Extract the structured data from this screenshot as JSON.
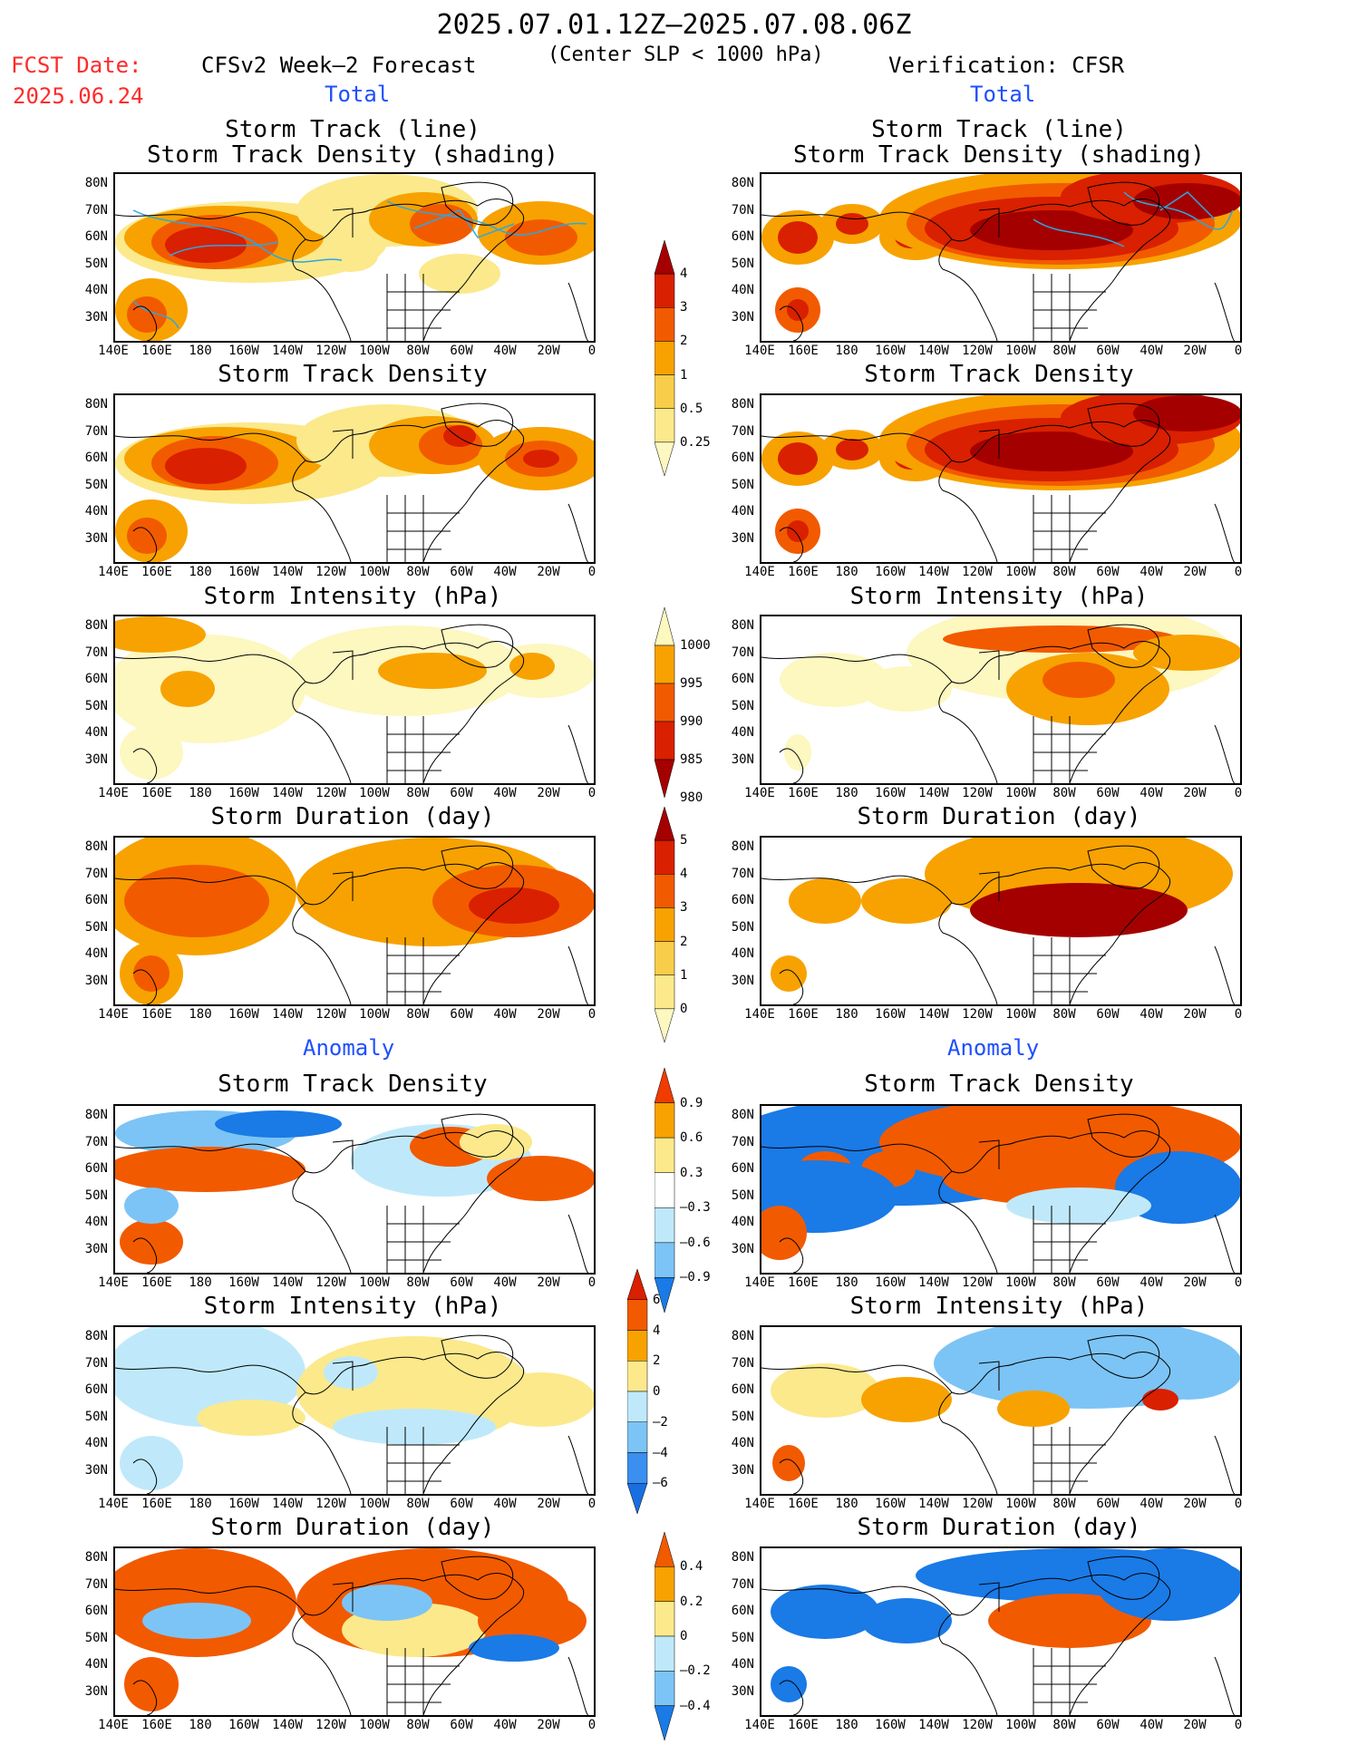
{
  "header": {
    "period": "2025.07.01.12Z–2025.07.08.06Z",
    "subtitle": "(Center SLP < 1000 hPa)",
    "fcst_label": "FCST Date:",
    "fcst_date": "2025.06.24",
    "left_title": "CFSv2 Week–2 Forecast",
    "right_title": "Verification: CFSR",
    "total_label": "Total",
    "anomaly_label": "Anomaly"
  },
  "axes": {
    "lat_labels": [
      "80N",
      "70N",
      "60N",
      "50N",
      "40N",
      "30N"
    ],
    "lon_labels": [
      "140E",
      "160E",
      "180",
      "160W",
      "140W",
      "120W",
      "100W",
      "80W",
      "60W",
      "40W",
      "20W",
      "0"
    ]
  },
  "rows": [
    {
      "title_line1": "Storm Track (line)",
      "title_line2": "Storm Track Density (shading)"
    },
    {
      "title_line1": "Storm Track Density",
      "title_line2": ""
    },
    {
      "title_line1": "Storm Intensity (hPa)",
      "title_line2": ""
    },
    {
      "title_line1": "Storm Duration (day)",
      "title_line2": ""
    },
    {
      "title_line1": "Storm Track Density",
      "title_line2": ""
    },
    {
      "title_line1": "Storm Intensity (hPa)",
      "title_line2": ""
    },
    {
      "title_line1": "Storm Duration (day)",
      "title_line2": ""
    }
  ],
  "colorbars": {
    "density": {
      "labels": [
        "4",
        "3",
        "2",
        "1",
        "0.5",
        "0.25"
      ],
      "colors": [
        "#a50000",
        "#d92000",
        "#f25a00",
        "#f7a200",
        "#f7cd4a",
        "#fbe98c",
        "#fdf7c0"
      ]
    },
    "intensity": {
      "labels": [
        "1000",
        "995",
        "990",
        "985",
        "980"
      ],
      "colors": [
        "#fdf7c0",
        "#f7a200",
        "#f25a00",
        "#d92000",
        "#a50000"
      ]
    },
    "duration": {
      "labels": [
        "5",
        "4",
        "3",
        "2",
        "1",
        "0"
      ],
      "colors": [
        "#a50000",
        "#d92000",
        "#f25a00",
        "#f7a200",
        "#f7cd4a",
        "#fbe98c",
        "#fdf7c0"
      ]
    },
    "anom_density": {
      "labels": [
        "0.9",
        "0.6",
        "0.3",
        "–0.3",
        "–0.6",
        "–0.9"
      ],
      "colors": [
        "#f03c00",
        "#f7a200",
        "#fbe98c",
        "#ffffff",
        "#bfe9fa",
        "#7cc4f5",
        "#1a7ae6"
      ]
    },
    "anom_intensity": {
      "labels": [
        "6",
        "4",
        "2",
        "0",
        "–2",
        "–4",
        "–6"
      ],
      "colors": [
        "#d92000",
        "#f25a00",
        "#f7a200",
        "#fbe98c",
        "#bfe9fa",
        "#7cc4f5",
        "#3a8ff0",
        "#1a6fe0"
      ]
    },
    "anom_duration": {
      "labels": [
        "0.4",
        "0.2",
        "0",
        "–0.2",
        "–0.4"
      ],
      "colors": [
        "#f25a00",
        "#f7a200",
        "#fbe98c",
        "#bfe9fa",
        "#7cc4f5",
        "#1a7ae6"
      ]
    }
  }
}
